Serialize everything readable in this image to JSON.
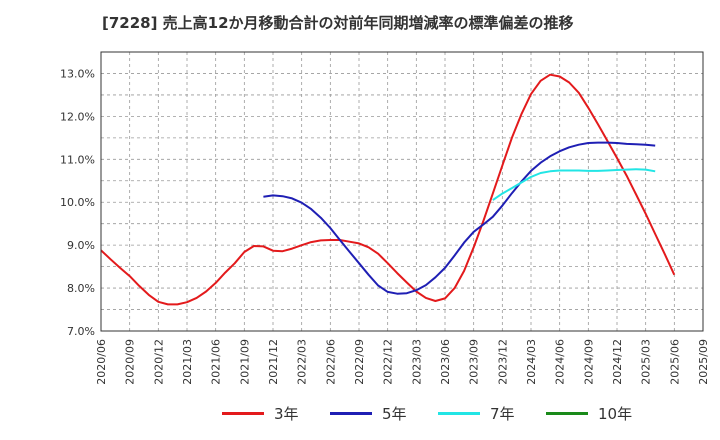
{
  "chart_data": {
    "type": "line",
    "title": "[7228]  売上高12か月移動合計の対前年同期増減率の標準偏差の推移",
    "ylim": [
      7.0,
      13.5
    ],
    "yticks": [
      "7.0%",
      "8.0%",
      "9.0%",
      "10.0%",
      "11.0%",
      "12.0%",
      "13.0%"
    ],
    "xticks": [
      "2020/06",
      "2020/09",
      "2020/12",
      "2021/03",
      "2021/06",
      "2021/09",
      "2021/12",
      "2022/03",
      "2022/06",
      "2022/09",
      "2022/12",
      "2023/03",
      "2023/06",
      "2023/09",
      "2023/12",
      "2024/03",
      "2024/06",
      "2024/09",
      "2024/12",
      "2025/03",
      "2025/06",
      "2025/09"
    ],
    "grid": true,
    "legend_position": "bottom",
    "series": [
      {
        "name": "3年",
        "color": "#e31a1c",
        "start": "2020/06",
        "values": [
          8.88,
          8.67,
          8.47,
          8.28,
          8.05,
          7.84,
          7.68,
          7.62,
          7.62,
          7.67,
          7.77,
          7.92,
          8.12,
          8.36,
          8.58,
          8.84,
          8.98,
          8.97,
          8.87,
          8.86,
          8.92,
          9.0,
          9.07,
          9.11,
          9.12,
          9.12,
          9.08,
          9.04,
          8.95,
          8.8,
          8.58,
          8.35,
          8.13,
          7.92,
          7.77,
          7.7,
          7.76,
          8.0,
          8.4,
          8.95,
          9.55,
          10.2,
          10.85,
          11.5,
          12.05,
          12.52,
          12.83,
          12.97,
          12.93,
          12.79,
          12.55,
          12.2,
          11.82,
          11.43,
          11.03,
          10.62,
          10.18,
          9.73,
          9.26,
          8.79,
          8.31
        ]
      },
      {
        "name": "5年",
        "color": "#1f1fb4",
        "start": "2021/11",
        "values": [
          10.13,
          10.16,
          10.14,
          10.09,
          9.99,
          9.84,
          9.64,
          9.4,
          9.12,
          8.85,
          8.58,
          8.31,
          8.06,
          7.91,
          7.87,
          7.88,
          7.95,
          8.07,
          8.25,
          8.47,
          8.76,
          9.06,
          9.31,
          9.48,
          9.66,
          9.92,
          10.21,
          10.48,
          10.73,
          10.92,
          11.07,
          11.19,
          11.28,
          11.34,
          11.38,
          11.39,
          11.39,
          11.38,
          11.36,
          11.35,
          11.34,
          11.32
        ]
      },
      {
        "name": "7年",
        "color": "#22e5e5",
        "start": "2023/11",
        "values": [
          10.05,
          10.2,
          10.33,
          10.46,
          10.59,
          10.68,
          10.72,
          10.74,
          10.74,
          10.74,
          10.73,
          10.73,
          10.74,
          10.75,
          10.76,
          10.77,
          10.76,
          10.72
        ]
      },
      {
        "name": "10年",
        "color": "#1a8a1a",
        "start": "2023/11",
        "values": []
      }
    ]
  }
}
